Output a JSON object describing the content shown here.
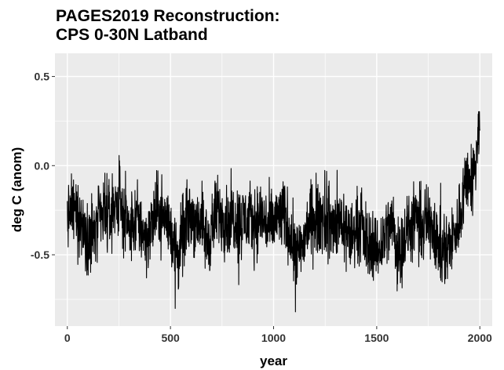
{
  "chart_data": {
    "type": "line",
    "title_lines": [
      "PAGES2019 Reconstruction:",
      "CPS 0-30N Latband"
    ],
    "xlabel": "year",
    "ylabel": "deg C (anom)",
    "xlim": [
      -60,
      2060
    ],
    "ylim": [
      -0.9,
      0.63
    ],
    "x_ticks": [
      0,
      500,
      1000,
      1500,
      2000
    ],
    "x_tick_labels": [
      "0",
      "500",
      "1000",
      "1500",
      "2000"
    ],
    "y_ticks": [
      0.5,
      0.0,
      -0.5
    ],
    "y_tick_labels": [
      "0.5",
      "0.0",
      "-0.5"
    ],
    "grid": true,
    "series": [
      {
        "name": "CPS 0-30N",
        "color": "#000000",
        "anchor_years": [
          0,
          20,
          40,
          60,
          80,
          100,
          120,
          140,
          160,
          180,
          200,
          220,
          240,
          260,
          280,
          300,
          320,
          340,
          360,
          380,
          400,
          420,
          440,
          460,
          480,
          500,
          520,
          540,
          560,
          580,
          600,
          620,
          640,
          660,
          680,
          700,
          720,
          740,
          760,
          780,
          800,
          820,
          840,
          860,
          880,
          900,
          920,
          940,
          960,
          980,
          1000,
          1020,
          1040,
          1060,
          1080,
          1100,
          1120,
          1140,
          1160,
          1180,
          1200,
          1220,
          1240,
          1260,
          1280,
          1300,
          1320,
          1340,
          1360,
          1380,
          1400,
          1420,
          1440,
          1460,
          1480,
          1500,
          1520,
          1540,
          1560,
          1580,
          1600,
          1620,
          1640,
          1660,
          1680,
          1700,
          1720,
          1740,
          1760,
          1780,
          1800,
          1820,
          1840,
          1860,
          1880,
          1900,
          1920,
          1940,
          1960,
          1980,
          2000
        ],
        "anchor_values": [
          -0.3,
          -0.25,
          -0.28,
          -0.3,
          -0.35,
          -0.38,
          -0.4,
          -0.35,
          -0.3,
          -0.28,
          -0.3,
          -0.25,
          -0.2,
          -0.22,
          -0.3,
          -0.35,
          -0.33,
          -0.3,
          -0.35,
          -0.4,
          -0.38,
          -0.3,
          -0.25,
          -0.28,
          -0.3,
          -0.35,
          -0.45,
          -0.5,
          -0.4,
          -0.3,
          -0.28,
          -0.3,
          -0.3,
          -0.35,
          -0.45,
          -0.35,
          -0.28,
          -0.25,
          -0.3,
          -0.3,
          -0.28,
          -0.3,
          -0.32,
          -0.3,
          -0.3,
          -0.32,
          -0.3,
          -0.28,
          -0.32,
          -0.35,
          -0.33,
          -0.3,
          -0.28,
          -0.3,
          -0.38,
          -0.45,
          -0.52,
          -0.45,
          -0.35,
          -0.3,
          -0.32,
          -0.3,
          -0.28,
          -0.32,
          -0.35,
          -0.33,
          -0.3,
          -0.32,
          -0.38,
          -0.4,
          -0.35,
          -0.32,
          -0.4,
          -0.45,
          -0.42,
          -0.48,
          -0.45,
          -0.38,
          -0.35,
          -0.32,
          -0.48,
          -0.45,
          -0.4,
          -0.35,
          -0.33,
          -0.3,
          -0.35,
          -0.32,
          -0.3,
          -0.35,
          -0.45,
          -0.48,
          -0.45,
          -0.42,
          -0.4,
          -0.3,
          -0.15,
          -0.05,
          -0.1,
          0.0,
          0.3
        ],
        "noise_amplitude": 0.1
      }
    ]
  }
}
